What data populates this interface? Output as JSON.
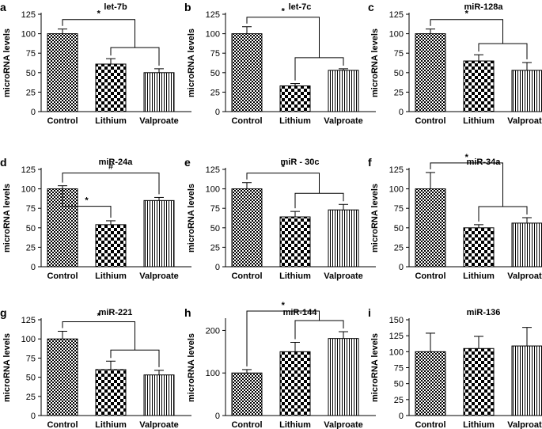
{
  "figure": {
    "ylabel": "microRNA levels",
    "categories": [
      "Control",
      "Lithium",
      "Valproate"
    ]
  },
  "colors": {
    "ink": "#000000",
    "background": "#ffffff"
  },
  "chart_data": [
    {
      "letter": "a",
      "type": "bar",
      "title": "let-7b",
      "categories": [
        "Control",
        "Lithium",
        "Valproate"
      ],
      "values": [
        100,
        61,
        50
      ],
      "errors": [
        6,
        7,
        5
      ],
      "ylim": [
        0,
        125
      ],
      "yticks": [
        0,
        25,
        50,
        75,
        100,
        125
      ],
      "ylabel": "microRNA levels",
      "annotations": [
        {
          "label": "*",
          "kind": "control-vs-treatments"
        }
      ]
    },
    {
      "letter": "b",
      "type": "bar",
      "title": "let-7c",
      "categories": [
        "Control",
        "Lithium",
        "Valproate"
      ],
      "values": [
        100,
        33,
        53
      ],
      "errors": [
        9,
        3,
        2
      ],
      "ylim": [
        0,
        125
      ],
      "yticks": [
        0,
        25,
        50,
        75,
        100,
        125
      ],
      "ylabel": "microRNA levels",
      "annotations": [
        {
          "label": "*",
          "kind": "control-vs-treatments"
        }
      ]
    },
    {
      "letter": "c",
      "type": "bar",
      "title": "miR-128a",
      "categories": [
        "Control",
        "Lithium",
        "Valproate"
      ],
      "values": [
        100,
        65,
        53
      ],
      "errors": [
        6,
        8,
        10
      ],
      "ylim": [
        0,
        125
      ],
      "yticks": [
        0,
        25,
        50,
        75,
        100,
        125
      ],
      "ylabel": "microRNA levels",
      "annotations": [
        {
          "label": "*",
          "kind": "control-vs-treatments"
        }
      ]
    },
    {
      "letter": "d",
      "type": "bar",
      "title": "miR-24a",
      "categories": [
        "Control",
        "Lithium",
        "Valproate"
      ],
      "values": [
        100,
        54,
        85
      ],
      "errors": [
        4,
        5,
        4
      ],
      "ylim": [
        0,
        125
      ],
      "yticks": [
        0,
        25,
        50,
        75,
        100,
        125
      ],
      "ylabel": "microRNA levels",
      "annotations": [
        {
          "label": "*",
          "kind": "control-vs-lithium"
        },
        {
          "label": "#",
          "kind": "control-vs-valproate"
        }
      ]
    },
    {
      "letter": "e",
      "type": "bar",
      "title": "miR - 30c",
      "categories": [
        "Control",
        "Lithium",
        "Valproate"
      ],
      "values": [
        100,
        64,
        73
      ],
      "errors": [
        8,
        7,
        7
      ],
      "ylim": [
        0,
        125
      ],
      "yticks": [
        0,
        25,
        50,
        75,
        100,
        125
      ],
      "ylabel": "microRNA levels",
      "annotations": [
        {
          "label": "*",
          "kind": "control-vs-treatments"
        }
      ]
    },
    {
      "letter": "f",
      "type": "bar",
      "title": "miR-34a",
      "categories": [
        "Control",
        "Lithium",
        "Valproate"
      ],
      "values": [
        100,
        50,
        56
      ],
      "errors": [
        21,
        4,
        7
      ],
      "ylim": [
        0,
        125
      ],
      "yticks": [
        0,
        25,
        50,
        75,
        100,
        125
      ],
      "ylabel": "microRNA levels",
      "annotations": [
        {
          "label": "*",
          "kind": "control-vs-treatments"
        }
      ]
    },
    {
      "letter": "g",
      "type": "bar",
      "title": "miR-221",
      "categories": [
        "Control",
        "Lithium",
        "Valproate"
      ],
      "values": [
        100,
        60,
        53
      ],
      "errors": [
        10,
        11,
        6
      ],
      "ylim": [
        0,
        125
      ],
      "yticks": [
        0,
        25,
        50,
        75,
        100,
        125
      ],
      "ylabel": "microRNA levels",
      "annotations": [
        {
          "label": "*",
          "kind": "control-vs-treatments"
        }
      ]
    },
    {
      "letter": "h",
      "type": "bar",
      "title": "miR-144",
      "categories": [
        "Control",
        "Lithium",
        "Valproate"
      ],
      "values": [
        100,
        150,
        181
      ],
      "errors": [
        8,
        22,
        16
      ],
      "ylim": [
        0,
        225
      ],
      "yticks": [
        0,
        100,
        200
      ],
      "ylabel": "microRNA levels",
      "annotations": [
        {
          "label": "*",
          "kind": "control-vs-treatments"
        }
      ]
    },
    {
      "letter": "i",
      "type": "bar",
      "title": "miR-136",
      "categories": [
        "Control",
        "Lithium",
        "Valproate"
      ],
      "values": [
        100,
        105,
        109
      ],
      "errors": [
        29,
        19,
        29
      ],
      "ylim": [
        0,
        150
      ],
      "yticks": [
        0,
        25,
        50,
        75,
        100,
        125,
        150
      ],
      "ylabel": "microRNA levels",
      "annotations": []
    }
  ]
}
